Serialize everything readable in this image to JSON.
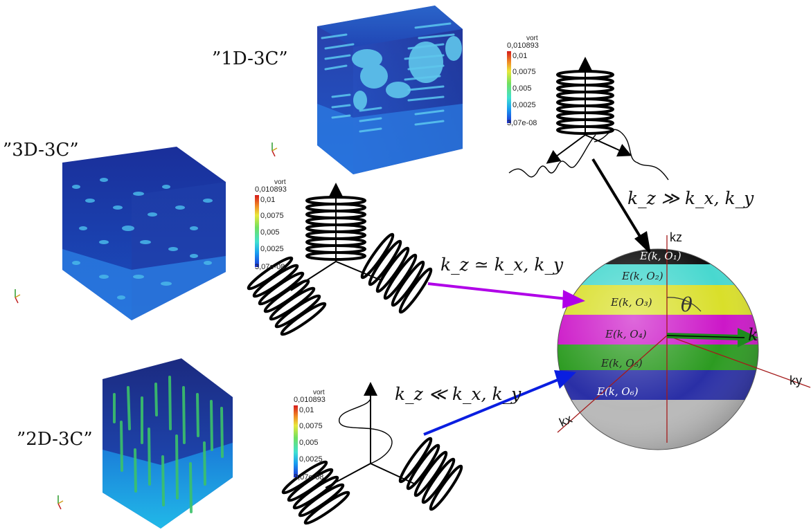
{
  "cases": [
    {
      "id": "1d3c",
      "label": "”1D-3C”",
      "condition": "k_z ≫ k_x, k_y",
      "arrow_color": "#000000"
    },
    {
      "id": "3d3c",
      "label": "”3D-3C”",
      "condition": "k_z ≃ k_x, k_y",
      "arrow_color": "#b000e8"
    },
    {
      "id": "2d3c",
      "label": "”2D-3C”",
      "condition": "k_z ≪ k_x, k_y",
      "arrow_color": "#0a1ee0"
    }
  ],
  "colorbar": {
    "title": "vort",
    "max": "0,010893",
    "ticks": [
      "0,01",
      "0,0075",
      "0,005",
      "0,0025"
    ],
    "min": "3,07e-08"
  },
  "sphere": {
    "axes": {
      "kz": "kz",
      "ky": "ky",
      "kx": "kx"
    },
    "angle": "θ",
    "vector": "k",
    "bands": [
      {
        "label": "E(k, O₁)",
        "color": "#111111",
        "text_color": "#ffffff"
      },
      {
        "label": "E(k, O₂)",
        "color": "#48d8cf",
        "text_color": "#222222"
      },
      {
        "label": "E(k, O₃)",
        "color": "#d9df2a",
        "text_color": "#222222"
      },
      {
        "label": "E(k, O₄)",
        "color": "#cc17c8",
        "text_color": "#222222"
      },
      {
        "label": "E(k, O₅)",
        "color": "#2c9b21",
        "text_color": "#222222"
      },
      {
        "label": "E(k, O₆)",
        "color": "#2a2fa6",
        "text_color": "#ffffff"
      },
      {
        "label": "",
        "color": "#b9b9b9",
        "text_color": "#222222"
      }
    ]
  }
}
